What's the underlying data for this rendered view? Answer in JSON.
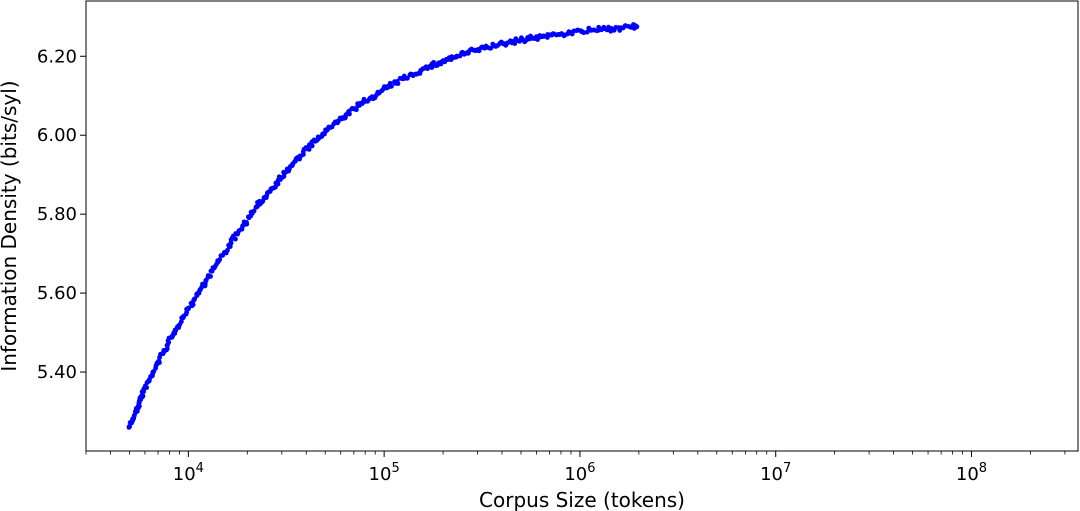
{
  "chart_data": {
    "type": "scatter",
    "title": "",
    "xlabel": "Corpus Size (tokens)",
    "ylabel": "Information Density (bits/syl)",
    "x_scale": "log",
    "xlim": [
      3000,
      350000000
    ],
    "ylim": [
      5.2,
      6.34
    ],
    "grid": false,
    "legend": "none",
    "marker_color": "#0000ff",
    "x_ticks": [
      {
        "value": 10000,
        "base": "10",
        "exp": "4"
      },
      {
        "value": 100000,
        "base": "10",
        "exp": "5"
      },
      {
        "value": 1000000,
        "base": "10",
        "exp": "6"
      },
      {
        "value": 10000000,
        "base": "10",
        "exp": "7"
      },
      {
        "value": 100000000,
        "base": "10",
        "exp": "8"
      }
    ],
    "y_ticks": [
      {
        "value": 5.4,
        "label": "5.40"
      },
      {
        "value": 5.6,
        "label": "5.60"
      },
      {
        "value": 5.8,
        "label": "5.80"
      },
      {
        "value": 6.0,
        "label": "6.00"
      },
      {
        "value": 6.2,
        "label": "6.20"
      }
    ],
    "series": [
      {
        "x": [
          5000,
          5200,
          5400,
          5600,
          5800,
          6000,
          6300,
          6600,
          7000,
          7400,
          7800,
          8300,
          8800,
          9400,
          10000,
          10700,
          11500,
          12300,
          13200,
          14200,
          15300,
          16500,
          17800,
          19200,
          20800,
          22500,
          24400,
          26500,
          28800,
          31300,
          34100,
          37200,
          40600,
          44400,
          48600,
          53200,
          58300,
          64000,
          70300,
          77300,
          85000,
          93600,
          103000,
          114000,
          126000,
          139000,
          154000,
          171000,
          190000,
          211000,
          235000,
          262000,
          292000,
          326000,
          364000,
          407000,
          455000,
          510000,
          571000,
          640000,
          718000,
          806000,
          905000,
          1020000,
          1140000,
          1290000,
          1450000,
          1630000,
          1840000,
          1950000
        ],
        "y": [
          5.262,
          5.281,
          5.301,
          5.322,
          5.341,
          5.36,
          5.378,
          5.4,
          5.425,
          5.447,
          5.468,
          5.492,
          5.514,
          5.538,
          5.561,
          5.584,
          5.609,
          5.632,
          5.656,
          5.68,
          5.703,
          5.727,
          5.75,
          5.773,
          5.796,
          5.82,
          5.842,
          5.864,
          5.886,
          5.906,
          5.927,
          5.947,
          5.966,
          5.985,
          6.003,
          6.02,
          6.036,
          6.052,
          6.067,
          6.081,
          6.094,
          6.107,
          6.12,
          6.132,
          6.144,
          6.154,
          6.164,
          6.174,
          6.183,
          6.192,
          6.2,
          6.208,
          6.215,
          6.221,
          6.227,
          6.232,
          6.237,
          6.242,
          6.246,
          6.25,
          6.254,
          6.257,
          6.26,
          6.263,
          6.266,
          6.268,
          6.27,
          6.272,
          6.274,
          6.275
        ]
      }
    ]
  }
}
